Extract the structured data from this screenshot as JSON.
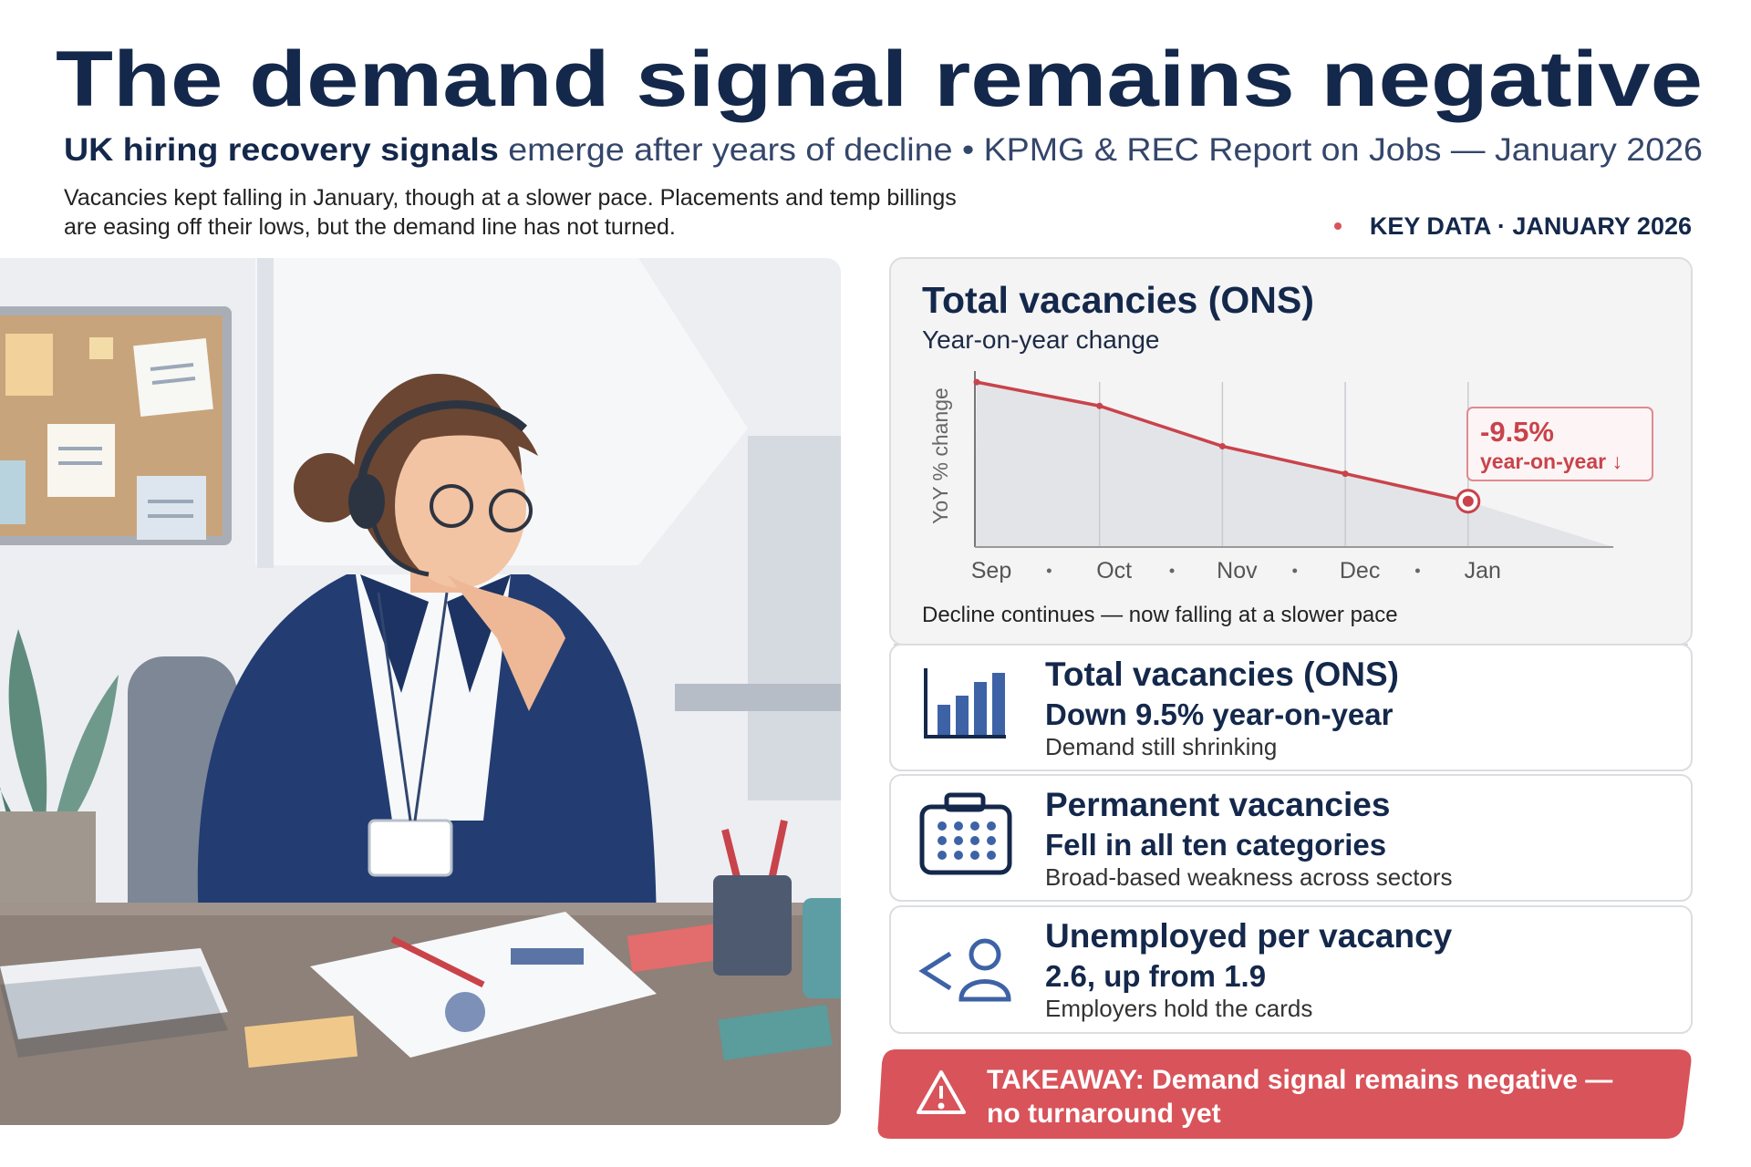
{
  "header": {
    "title": "The demand signal remains negative",
    "subtitle_lead": "UK hiring recovery signals",
    "subtitle_rest": "emerge after years of decline • KPMG & REC Report on Jobs — January 2026",
    "description": [
      "Vacancies kept falling in January, though at a slower pace. Placements and temp billings",
      "are easing off their lows, but the demand line has not turned."
    ],
    "key_data": "KEY DATA · JANUARY 2026"
  },
  "chart_data": {
    "type": "line",
    "title": "Total vacancies (ONS)",
    "subtitle": "Year-on-year change",
    "y_label": "YoY % change",
    "categories": [
      "Sep",
      "Oct",
      "Nov",
      "Dec",
      "Jan"
    ],
    "values": [
      -3,
      -4.3,
      -6.5,
      -8,
      -9.5
    ],
    "value_labels": [
      null,
      null,
      null,
      null,
      "-9.5%"
    ],
    "annotation": "year-on-year ↓",
    "color": "#c9434b",
    "ylim": [
      -12,
      -2
    ],
    "grid": true,
    "caption": "Decline continues — now falling at a slower pace"
  },
  "cards": [
    {
      "title": "Total vacancies (ONS)",
      "headline": "Down 9.5% year-on-year",
      "note": "Demand still shrinking"
    },
    {
      "title": "Permanent vacancies",
      "headline": "Fell in all ten categories",
      "note": "Broad-based weakness across sectors"
    },
    {
      "title": "Unemployed per vacancy",
      "headline": "2.6, up from 1.9",
      "note": "Employers hold the cards"
    }
  ],
  "takeaway": [
    "TAKEAWAY: Demand signal remains negative —",
    "no turnaround yet"
  ]
}
